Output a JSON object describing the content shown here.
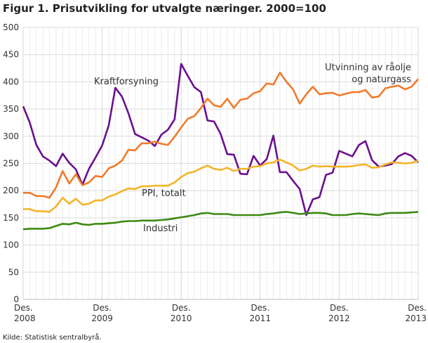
{
  "chart_data": {
    "type": "line",
    "title": "Figur 1. Prisutvikling for utvalgte næringer. 2000=100",
    "xlabel": "",
    "ylabel": "",
    "ylim": [
      0,
      500
    ],
    "yticks": [
      0,
      50,
      100,
      150,
      200,
      250,
      300,
      350,
      400,
      450,
      500
    ],
    "xticks": [
      {
        "line1": "Des.",
        "line2": "2008",
        "month_index": 0
      },
      {
        "line1": "Des.",
        "line2": "2009",
        "month_index": 12
      },
      {
        "line1": "Des.",
        "line2": "2010",
        "month_index": 24
      },
      {
        "line1": "Des.",
        "line2": "2011",
        "month_index": 36
      },
      {
        "line1": "Des.",
        "line2": "2012",
        "month_index": 48
      },
      {
        "line1": "Des.",
        "line2": "2013",
        "month_index": 60
      }
    ],
    "x_range": "Des. 2008 – Des. 2013, monthly",
    "grid": true,
    "series": [
      {
        "name": "Kraftforsyning",
        "color": "#6b0f8e",
        "label_lines": [
          "Kraftforsyning"
        ],
        "values": [
          355,
          325,
          284,
          263,
          255,
          245,
          268,
          251,
          239,
          211,
          240,
          261,
          283,
          320,
          389,
          373,
          342,
          304,
          298,
          292,
          282,
          303,
          312,
          331,
          433,
          411,
          390,
          381,
          329,
          327,
          304,
          267,
          266,
          231,
          230,
          264,
          246,
          258,
          301,
          234,
          234,
          218,
          203,
          155,
          184,
          188,
          229,
          233,
          273,
          268,
          263,
          284,
          291,
          256,
          244,
          246,
          249,
          263,
          269,
          264,
          252
        ]
      },
      {
        "name": "Utvinning av råolje og naturgass",
        "color": "#f07b2b",
        "label_lines": [
          "Utvinning av råolje",
          "og naturgass"
        ],
        "values": [
          196,
          196,
          190,
          190,
          187,
          206,
          236,
          213,
          230,
          210,
          215,
          227,
          225,
          241,
          246,
          255,
          275,
          274,
          287,
          287,
          290,
          286,
          284,
          299,
          316,
          332,
          337,
          352,
          369,
          357,
          354,
          369,
          352,
          367,
          369,
          379,
          383,
          397,
          395,
          417,
          400,
          386,
          360,
          377,
          391,
          377,
          379,
          380,
          375,
          378,
          381,
          381,
          385,
          371,
          373,
          388,
          391,
          393,
          386,
          391,
          405
        ]
      },
      {
        "name": "PPI, totalt",
        "color": "#f2b52a",
        "label_lines": [
          "PPI, totalt"
        ],
        "values": [
          166,
          166,
          162,
          162,
          161,
          171,
          187,
          176,
          185,
          174,
          176,
          182,
          182,
          189,
          193,
          199,
          204,
          203,
          208,
          208,
          209,
          209,
          209,
          215,
          225,
          232,
          235,
          241,
          246,
          240,
          238,
          242,
          236,
          240,
          240,
          244,
          245,
          250,
          252,
          257,
          252,
          246,
          237,
          240,
          246,
          244,
          245,
          244,
          244,
          244,
          245,
          247,
          248,
          242,
          243,
          248,
          252,
          251,
          250,
          251,
          255
        ]
      },
      {
        "name": "Industri",
        "color": "#3d8a12",
        "label_lines": [
          "Industri"
        ],
        "values": [
          129,
          130,
          130,
          130,
          131,
          135,
          139,
          138,
          141,
          138,
          137,
          139,
          139,
          140,
          141,
          143,
          144,
          144,
          145,
          145,
          145,
          146,
          147,
          149,
          151,
          153,
          155,
          158,
          159,
          157,
          157,
          157,
          155,
          155,
          155,
          155,
          155,
          157,
          158,
          160,
          161,
          159,
          157,
          158,
          159,
          159,
          158,
          155,
          155,
          155,
          157,
          158,
          157,
          156,
          155,
          158,
          159,
          159,
          159,
          160,
          161
        ]
      }
    ],
    "source": "Kilde: Statistisk sentralbyrå."
  }
}
